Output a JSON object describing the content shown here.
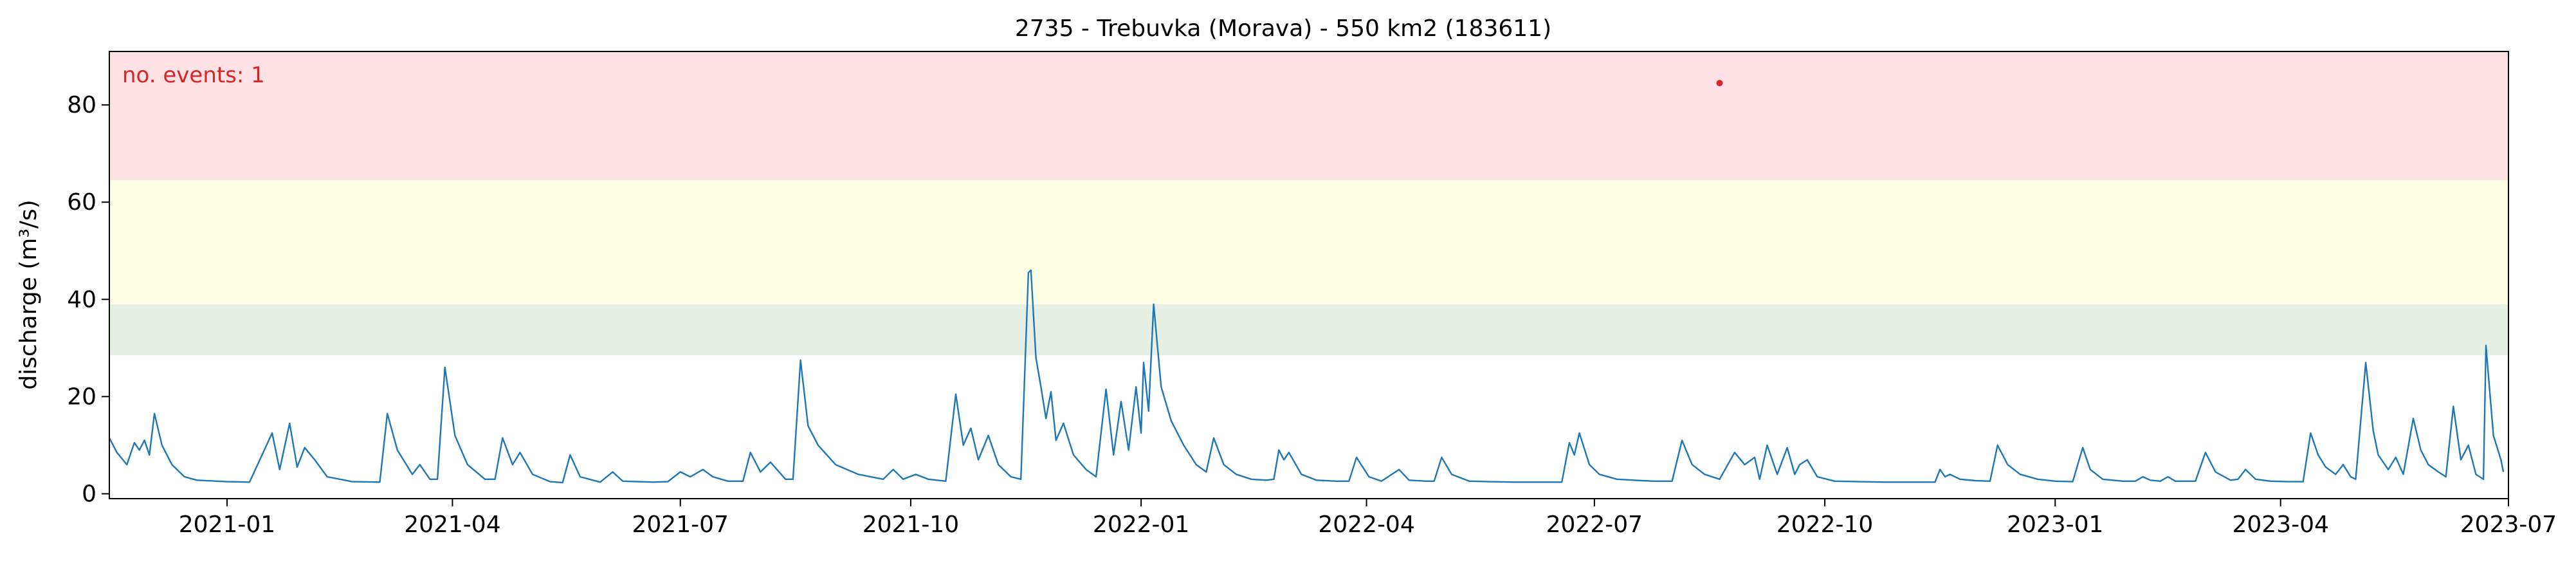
{
  "chart_data": {
    "type": "line",
    "title": "2735 - Trebuvka (Morava) - 550 km2 (183611)",
    "xlabel": "",
    "ylabel": "discharge (m³/s)",
    "annotation": "no. events: 1",
    "xlim": [
      "2020-11-15",
      "2023-07-01"
    ],
    "ylim": [
      -1,
      91
    ],
    "x_ticks": [
      "2021-01",
      "2021-04",
      "2021-07",
      "2021-10",
      "2022-01",
      "2022-04",
      "2022-07",
      "2022-10",
      "2023-01",
      "2023-04",
      "2023-07"
    ],
    "y_ticks": [
      0,
      20,
      40,
      60,
      80
    ],
    "grid": false,
    "bands": [
      {
        "from": 28.5,
        "to": 39,
        "color": "#e5efe3"
      },
      {
        "from": 39,
        "to": 64.5,
        "color": "#fefee4"
      },
      {
        "from": 64.5,
        "to": 91,
        "color": "#fee1e4"
      }
    ],
    "series": [
      {
        "color": "#1f77b4",
        "points": [
          [
            "2020-11-15",
            11.5
          ],
          [
            "2020-11-18",
            8.5
          ],
          [
            "2020-11-22",
            6
          ],
          [
            "2020-11-25",
            10.5
          ],
          [
            "2020-11-27",
            9
          ],
          [
            "2020-11-29",
            11
          ],
          [
            "2020-12-01",
            8
          ],
          [
            "2020-12-03",
            16.5
          ],
          [
            "2020-12-06",
            10
          ],
          [
            "2020-12-10",
            6
          ],
          [
            "2020-12-15",
            3.5
          ],
          [
            "2020-12-20",
            2.8
          ],
          [
            "2021-01-01",
            2.5
          ],
          [
            "2021-01-10",
            2.4
          ],
          [
            "2021-01-19",
            12.5
          ],
          [
            "2021-01-22",
            5
          ],
          [
            "2021-01-26",
            14.5
          ],
          [
            "2021-01-29",
            5.5
          ],
          [
            "2021-02-01",
            9.5
          ],
          [
            "2021-02-05",
            7
          ],
          [
            "2021-02-10",
            3.5
          ],
          [
            "2021-02-20",
            2.5
          ],
          [
            "2021-03-03",
            2.4
          ],
          [
            "2021-03-06",
            16.5
          ],
          [
            "2021-03-10",
            9
          ],
          [
            "2021-03-16",
            4
          ],
          [
            "2021-03-19",
            6
          ],
          [
            "2021-03-23",
            3
          ],
          [
            "2021-03-26",
            3
          ],
          [
            "2021-03-29",
            26
          ],
          [
            "2021-04-02",
            12
          ],
          [
            "2021-04-07",
            6
          ],
          [
            "2021-04-14",
            3
          ],
          [
            "2021-04-18",
            3
          ],
          [
            "2021-04-21",
            11.5
          ],
          [
            "2021-04-25",
            6
          ],
          [
            "2021-04-28",
            8.5
          ],
          [
            "2021-05-03",
            4
          ],
          [
            "2021-05-10",
            2.5
          ],
          [
            "2021-05-15",
            2.3
          ],
          [
            "2021-05-18",
            8
          ],
          [
            "2021-05-22",
            3.5
          ],
          [
            "2021-05-30",
            2.4
          ],
          [
            "2021-06-04",
            4.5
          ],
          [
            "2021-06-08",
            2.6
          ],
          [
            "2021-06-20",
            2.4
          ],
          [
            "2021-06-26",
            2.5
          ],
          [
            "2021-07-01",
            4.5
          ],
          [
            "2021-07-05",
            3.5
          ],
          [
            "2021-07-10",
            5
          ],
          [
            "2021-07-14",
            3.5
          ],
          [
            "2021-07-20",
            2.6
          ],
          [
            "2021-07-26",
            2.6
          ],
          [
            "2021-07-29",
            8.5
          ],
          [
            "2021-08-02",
            4.5
          ],
          [
            "2021-08-06",
            6.5
          ],
          [
            "2021-08-12",
            3
          ],
          [
            "2021-08-15",
            3
          ],
          [
            "2021-08-18",
            27.5
          ],
          [
            "2021-08-21",
            14
          ],
          [
            "2021-08-25",
            10
          ],
          [
            "2021-09-01",
            6
          ],
          [
            "2021-09-10",
            4
          ],
          [
            "2021-09-20",
            3
          ],
          [
            "2021-09-24",
            5
          ],
          [
            "2021-09-28",
            3
          ],
          [
            "2021-10-03",
            4
          ],
          [
            "2021-10-08",
            3
          ],
          [
            "2021-10-15",
            2.6
          ],
          [
            "2021-10-19",
            20.5
          ],
          [
            "2021-10-22",
            10
          ],
          [
            "2021-10-25",
            13.5
          ],
          [
            "2021-10-28",
            7
          ],
          [
            "2021-11-01",
            12
          ],
          [
            "2021-11-05",
            6
          ],
          [
            "2021-11-10",
            3.5
          ],
          [
            "2021-11-14",
            3
          ],
          [
            "2021-11-17",
            45.5
          ],
          [
            "2021-11-18",
            46
          ],
          [
            "2021-11-20",
            28
          ],
          [
            "2021-11-22",
            22
          ],
          [
            "2021-11-24",
            15.5
          ],
          [
            "2021-11-26",
            21
          ],
          [
            "2021-11-28",
            11
          ],
          [
            "2021-12-01",
            14.5
          ],
          [
            "2021-12-05",
            8
          ],
          [
            "2021-12-10",
            5
          ],
          [
            "2021-12-14",
            3.5
          ],
          [
            "2021-12-18",
            21.5
          ],
          [
            "2021-12-21",
            8
          ],
          [
            "2021-12-24",
            19
          ],
          [
            "2021-12-27",
            9
          ],
          [
            "2021-12-30",
            22
          ],
          [
            "2022-01-01",
            12.5
          ],
          [
            "2022-01-02",
            27
          ],
          [
            "2022-01-04",
            17
          ],
          [
            "2022-01-06",
            39
          ],
          [
            "2022-01-09",
            22
          ],
          [
            "2022-01-13",
            15
          ],
          [
            "2022-01-18",
            10
          ],
          [
            "2022-01-23",
            6
          ],
          [
            "2022-01-27",
            4.5
          ],
          [
            "2022-01-30",
            11.5
          ],
          [
            "2022-02-03",
            6
          ],
          [
            "2022-02-08",
            4
          ],
          [
            "2022-02-14",
            3
          ],
          [
            "2022-02-20",
            2.8
          ],
          [
            "2022-02-23",
            3
          ],
          [
            "2022-02-25",
            9
          ],
          [
            "2022-02-27",
            7
          ],
          [
            "2022-03-01",
            8.5
          ],
          [
            "2022-03-06",
            4
          ],
          [
            "2022-03-12",
            2.8
          ],
          [
            "2022-03-20",
            2.6
          ],
          [
            "2022-03-25",
            2.6
          ],
          [
            "2022-03-28",
            7.5
          ],
          [
            "2022-04-02",
            3.5
          ],
          [
            "2022-04-07",
            2.6
          ],
          [
            "2022-04-14",
            5
          ],
          [
            "2022-04-18",
            2.8
          ],
          [
            "2022-04-25",
            2.6
          ],
          [
            "2022-04-28",
            2.6
          ],
          [
            "2022-05-01",
            7.5
          ],
          [
            "2022-05-05",
            4
          ],
          [
            "2022-05-12",
            2.6
          ],
          [
            "2022-05-20",
            2.5
          ],
          [
            "2022-05-30",
            2.4
          ],
          [
            "2022-06-08",
            2.4
          ],
          [
            "2022-06-18",
            2.4
          ],
          [
            "2022-06-21",
            10.5
          ],
          [
            "2022-06-23",
            8
          ],
          [
            "2022-06-25",
            12.5
          ],
          [
            "2022-06-29",
            6
          ],
          [
            "2022-07-03",
            4
          ],
          [
            "2022-07-10",
            3
          ],
          [
            "2022-07-20",
            2.7
          ],
          [
            "2022-07-25",
            2.6
          ],
          [
            "2022-08-01",
            2.6
          ],
          [
            "2022-08-05",
            11
          ],
          [
            "2022-08-09",
            6
          ],
          [
            "2022-08-14",
            4
          ],
          [
            "2022-08-20",
            3
          ],
          [
            "2022-08-26",
            8.5
          ],
          [
            "2022-08-30",
            6
          ],
          [
            "2022-09-03",
            7.5
          ],
          [
            "2022-09-05",
            3
          ],
          [
            "2022-09-08",
            10
          ],
          [
            "2022-09-12",
            4
          ],
          [
            "2022-09-16",
            9.5
          ],
          [
            "2022-09-19",
            4
          ],
          [
            "2022-09-21",
            6
          ],
          [
            "2022-09-24",
            7
          ],
          [
            "2022-09-28",
            3.5
          ],
          [
            "2022-10-05",
            2.6
          ],
          [
            "2022-10-15",
            2.5
          ],
          [
            "2022-10-25",
            2.4
          ],
          [
            "2022-11-05",
            2.4
          ],
          [
            "2022-11-14",
            2.4
          ],
          [
            "2022-11-16",
            5
          ],
          [
            "2022-11-18",
            3.5
          ],
          [
            "2022-11-20",
            4
          ],
          [
            "2022-11-24",
            3
          ],
          [
            "2022-11-30",
            2.7
          ],
          [
            "2022-12-06",
            2.6
          ],
          [
            "2022-12-09",
            10
          ],
          [
            "2022-12-13",
            6
          ],
          [
            "2022-12-18",
            4
          ],
          [
            "2022-12-25",
            3
          ],
          [
            "2023-01-01",
            2.6
          ],
          [
            "2023-01-08",
            2.5
          ],
          [
            "2023-01-12",
            9.5
          ],
          [
            "2023-01-15",
            5
          ],
          [
            "2023-01-20",
            3
          ],
          [
            "2023-01-28",
            2.6
          ],
          [
            "2023-02-02",
            2.6
          ],
          [
            "2023-02-05",
            3.5
          ],
          [
            "2023-02-08",
            2.8
          ],
          [
            "2023-02-12",
            2.6
          ],
          [
            "2023-02-15",
            3.5
          ],
          [
            "2023-02-18",
            2.6
          ],
          [
            "2023-02-26",
            2.6
          ],
          [
            "2023-03-02",
            8.5
          ],
          [
            "2023-03-06",
            4.5
          ],
          [
            "2023-03-12",
            2.8
          ],
          [
            "2023-03-15",
            3
          ],
          [
            "2023-03-18",
            5
          ],
          [
            "2023-03-22",
            3
          ],
          [
            "2023-03-28",
            2.6
          ],
          [
            "2023-04-04",
            2.5
          ],
          [
            "2023-04-10",
            2.5
          ],
          [
            "2023-04-13",
            12.5
          ],
          [
            "2023-04-16",
            8
          ],
          [
            "2023-04-19",
            5.5
          ],
          [
            "2023-04-23",
            4
          ],
          [
            "2023-04-26",
            6
          ],
          [
            "2023-04-29",
            3.5
          ],
          [
            "2023-05-01",
            3
          ],
          [
            "2023-05-05",
            27
          ],
          [
            "2023-05-08",
            13
          ],
          [
            "2023-05-10",
            8
          ],
          [
            "2023-05-14",
            5
          ],
          [
            "2023-05-17",
            7.5
          ],
          [
            "2023-05-20",
            4
          ],
          [
            "2023-05-24",
            15.5
          ],
          [
            "2023-05-27",
            9
          ],
          [
            "2023-05-30",
            6
          ],
          [
            "2023-06-03",
            4.5
          ],
          [
            "2023-06-06",
            3.5
          ],
          [
            "2023-06-09",
            18
          ],
          [
            "2023-06-12",
            7
          ],
          [
            "2023-06-15",
            10
          ],
          [
            "2023-06-18",
            4
          ],
          [
            "2023-06-21",
            3
          ],
          [
            "2023-06-22",
            30.5
          ],
          [
            "2023-06-25",
            12
          ],
          [
            "2023-06-28",
            7
          ],
          [
            "2023-06-29",
            4.5
          ]
        ]
      }
    ],
    "event_marker": {
      "x": "2022-08-20",
      "y": 84.5,
      "color": "#d62728"
    }
  }
}
